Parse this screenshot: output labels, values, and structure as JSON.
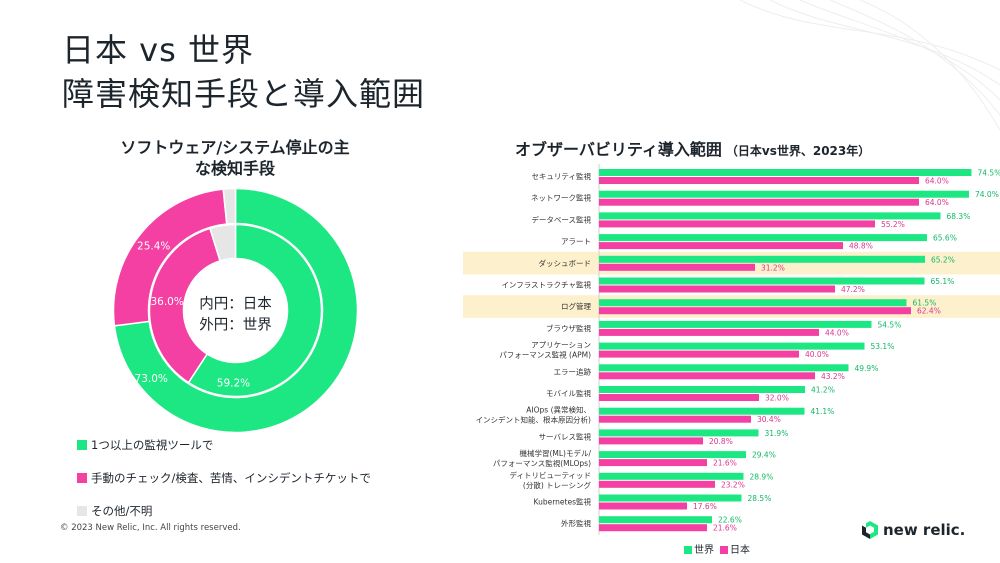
{
  "title": {
    "line1": "日本 vs 世界",
    "line2": "障害検知手段と導入範囲"
  },
  "donut": {
    "title_line1": "ソフトウェア/システム停止の主",
    "title_line2": "な検知手段",
    "center_line1": "内円：日本",
    "center_line2": "外円：世界"
  },
  "legend": {
    "items": [
      {
        "label": "1つ以上の監視ツールで",
        "color": "#1ce783"
      },
      {
        "label": "手動のチェック/検査、苦情、インシデントチケットで",
        "color": "#f43fa3"
      },
      {
        "label": "その他/不明",
        "color": "#e6e6e6"
      }
    ]
  },
  "copyright": "© 2023 New Relic, Inc. All rights reserved.",
  "bar_title": {
    "main": "オブザーバビリティ導入範囲",
    "sub": "（日本vs世界、2023年）"
  },
  "bar_legend": {
    "world": "世界",
    "japan": "日本"
  },
  "logo": {
    "text": "new relic."
  },
  "colors": {
    "green": "#1ce783",
    "pink": "#f43fa3",
    "gray": "#e6e6e6",
    "highlight": "#fdf0cc"
  },
  "chart_data": [
    {
      "type": "pie",
      "rings": [
        {
          "ring": "outer",
          "name": "世界",
          "slices": [
            {
              "category": "1つ以上の監視ツールで",
              "value": 73.0,
              "label": "73.0%"
            },
            {
              "category": "手動のチェック/検査、苦情、インシデントチケットで",
              "value": 25.4,
              "label": "25.4%"
            },
            {
              "category": "その他/不明",
              "value": 1.6,
              "label": ""
            }
          ]
        },
        {
          "ring": "inner",
          "name": "日本",
          "slices": [
            {
              "category": "1つ以上の監視ツールで",
              "value": 59.2,
              "label": "59.2%"
            },
            {
              "category": "手動のチェック/検査、苦情、インシデントチケットで",
              "value": 36.0,
              "label": "36.0%"
            },
            {
              "category": "その他/不明",
              "value": 4.8,
              "label": ""
            }
          ]
        }
      ]
    },
    {
      "type": "bar",
      "orientation": "horizontal",
      "categories": [
        [
          "セキュリティ監視"
        ],
        [
          "ネットワーク監視"
        ],
        [
          "データベース監視"
        ],
        [
          "アラート"
        ],
        [
          "ダッシュボード"
        ],
        [
          "インフラストラクチャ監視"
        ],
        [
          "ログ管理"
        ],
        [
          "ブラウザ監視"
        ],
        [
          "アプリケーション",
          "パフォーマンス監視 (APM)"
        ],
        [
          "エラー追跡"
        ],
        [
          "モバイル監視"
        ],
        [
          "AIOps (異常検知、",
          "インシデント知能、根本原因分析)"
        ],
        [
          "サーバレス監視"
        ],
        [
          "機械学習(ML)モデル/",
          "パフォーマンス監視(MLOps)"
        ],
        [
          "ディトリビューティッド",
          "(分散) トレーシング"
        ],
        [
          "Kubernetes監視"
        ],
        [
          "外形監視"
        ]
      ],
      "highlighted": [
        4,
        6
      ],
      "series": [
        {
          "name": "世界",
          "values": [
            74.5,
            74.0,
            68.3,
            65.6,
            65.2,
            65.1,
            61.5,
            54.5,
            53.1,
            49.9,
            41.2,
            41.1,
            31.9,
            29.4,
            28.9,
            28.5,
            22.6
          ]
        },
        {
          "name": "日本",
          "values": [
            64.0,
            64.0,
            55.2,
            48.8,
            31.2,
            47.2,
            62.4,
            44.0,
            40.0,
            43.2,
            32.0,
            30.4,
            20.8,
            21.6,
            23.2,
            17.6,
            21.6
          ]
        }
      ],
      "xlim": [
        0,
        80
      ],
      "value_suffix": "%"
    }
  ]
}
